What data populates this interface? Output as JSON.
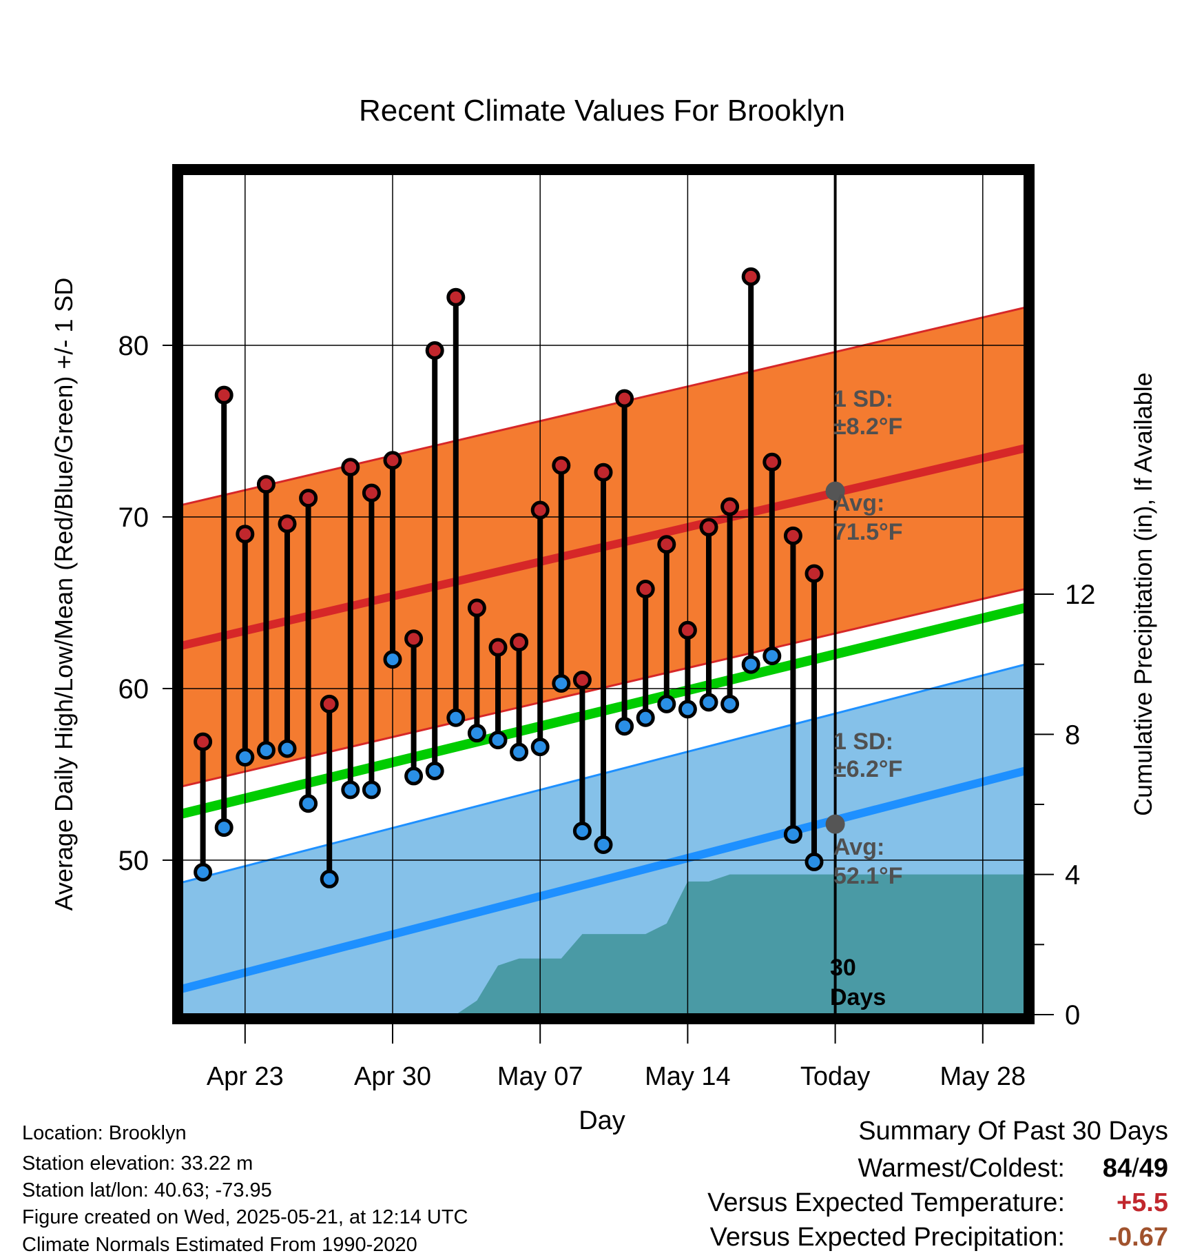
{
  "chart_data": {
    "type": "line",
    "title": "Recent Climate Values For Brooklyn",
    "xlabel": "Day",
    "ylabel": "Average Daily High/Low/Mean (Red/Blue/Green) +/- 1 SD",
    "y2label": "Cumulative Precipitation (in), If Available",
    "ylim": [
      41,
      90
    ],
    "y2lim": [
      0,
      24
    ],
    "y_ticks": [
      50,
      60,
      70,
      80
    ],
    "y2_ticks": [
      0,
      4,
      8,
      12
    ],
    "x_ticks": [
      {
        "date": "2025-04-23",
        "label": "Apr 23"
      },
      {
        "date": "2025-04-30",
        "label": "Apr 30"
      },
      {
        "date": "2025-05-07",
        "label": "May 07"
      },
      {
        "date": "2025-05-14",
        "label": "May 14"
      },
      {
        "date": "2025-05-21",
        "label": "Today"
      },
      {
        "date": "2025-05-28",
        "label": "May 28"
      }
    ],
    "xlim": [
      "2025-04-20",
      "2025-05-30"
    ],
    "today": "2025-05-21",
    "grid": true,
    "normal_high": {
      "start": 62.5,
      "end": 74.0,
      "sd": 8.2,
      "today_value": 71.5,
      "color": "#d62728",
      "band_color": "#f47b30"
    },
    "normal_low": {
      "start": 42.5,
      "end": 55.2,
      "sd": 6.2,
      "today_value": 52.1,
      "color": "#1e90ff",
      "band_color": "#85c1e9"
    },
    "normal_mean": {
      "start": 52.7,
      "end": 64.7,
      "color": "#00cc00"
    },
    "daily": {
      "dates": [
        "2025-04-21",
        "2025-04-22",
        "2025-04-23",
        "2025-04-24",
        "2025-04-25",
        "2025-04-26",
        "2025-04-27",
        "2025-04-28",
        "2025-04-29",
        "2025-04-30",
        "2025-05-01",
        "2025-05-02",
        "2025-05-03",
        "2025-05-04",
        "2025-05-05",
        "2025-05-06",
        "2025-05-07",
        "2025-05-08",
        "2025-05-09",
        "2025-05-10",
        "2025-05-11",
        "2025-05-12",
        "2025-05-13",
        "2025-05-14",
        "2025-05-15",
        "2025-05-16",
        "2025-05-17",
        "2025-05-18",
        "2025-05-19",
        "2025-05-20"
      ],
      "high": [
        56.9,
        77.1,
        69.0,
        71.9,
        69.6,
        71.1,
        59.1,
        72.9,
        71.4,
        73.3,
        62.9,
        79.7,
        82.8,
        64.7,
        62.4,
        62.7,
        70.4,
        73.0,
        60.5,
        72.6,
        76.9,
        65.8,
        68.4,
        63.4,
        69.4,
        70.6,
        84.0,
        73.2,
        68.9,
        66.7
      ],
      "low": [
        49.3,
        51.9,
        56.0,
        56.4,
        56.5,
        53.3,
        48.9,
        54.1,
        54.1,
        61.7,
        54.9,
        55.2,
        58.3,
        57.4,
        57.0,
        56.3,
        56.6,
        60.3,
        51.7,
        50.9,
        57.8,
        58.3,
        59.1,
        58.8,
        59.2,
        59.1,
        61.4,
        61.9,
        51.5,
        49.9
      ],
      "high_color": "#c1272d",
      "low_color": "#2a8fe6"
    },
    "precip": {
      "color": "#4a9aa5",
      "points": [
        [
          "2025-04-20",
          0
        ],
        [
          "2025-05-03",
          0
        ],
        [
          "2025-05-04",
          0.4
        ],
        [
          "2025-05-05",
          1.4
        ],
        [
          "2025-05-06",
          1.6
        ],
        [
          "2025-05-08",
          1.6
        ],
        [
          "2025-05-09",
          2.3
        ],
        [
          "2025-05-12",
          2.3
        ],
        [
          "2025-05-13",
          2.6
        ],
        [
          "2025-05-14",
          3.8
        ],
        [
          "2025-05-15",
          3.8
        ],
        [
          "2025-05-16",
          4.0
        ],
        [
          "2025-05-30",
          4.0
        ]
      ]
    },
    "annotations": {
      "high_sd_label": "1 SD:",
      "high_sd_value": "±8.2°F",
      "high_avg_label": "Avg:",
      "high_avg_value": "71.5°F",
      "low_sd_label": "1 SD:",
      "low_sd_value": "±6.2°F",
      "low_avg_label": "Avg:",
      "low_avg_value": "52.1°F",
      "days_label_1": "30",
      "days_label_2": "Days"
    }
  },
  "info": {
    "location": "Location: Brooklyn",
    "elevation": "Station elevation: 33.22 m",
    "latlon": "Station lat/lon: 40.63; -73.95",
    "created": "Figure created on Wed, 2025-05-21, at 12:14 UTC",
    "normals": "Climate Normals Estimated From 1990-2020"
  },
  "summary": {
    "title": "Summary Of Past 30 Days",
    "warmest_label": "Warmest/Coldest:",
    "warmest_value": "84",
    "slash": "/",
    "coldest_value": "49",
    "temp_label": "Versus Expected Temperature:",
    "temp_value": "+5.5",
    "temp_color": "#c1272d",
    "precip_label": "Versus Expected Precipitation:",
    "precip_value": "-0.67",
    "precip_color": "#a0522d"
  }
}
